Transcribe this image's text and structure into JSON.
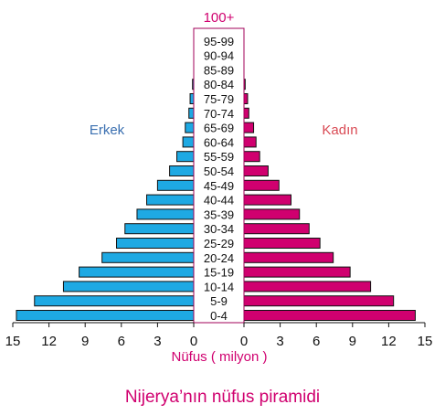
{
  "chart_data": {
    "type": "bar",
    "title": "Nijerya’nın nüfus piramidi",
    "top_label": "100+",
    "xlabel": "Nüfus ( milyon )",
    "left_label": "Erkek",
    "right_label": "Kadın",
    "categories": [
      "0-4",
      "5-9",
      "10-14",
      "15-19",
      "20-24",
      "25-29",
      "30-34",
      "35-39",
      "40-44",
      "45-49",
      "50-54",
      "55-59",
      "60-64",
      "65-69",
      "70-74",
      "75-79",
      "80-84",
      "85-89",
      "90-94",
      "95-99"
    ],
    "series": [
      {
        "name": "Erkek",
        "color": "#1ea9e3",
        "values": [
          14.7,
          13.2,
          10.8,
          9.5,
          7.6,
          6.4,
          5.7,
          4.7,
          3.9,
          3.0,
          2.0,
          1.4,
          0.9,
          0.7,
          0.4,
          0.3,
          0.1,
          0.0,
          0.0,
          0.0
        ]
      },
      {
        "name": "Kadın",
        "color": "#d0006f",
        "values": [
          14.2,
          12.4,
          10.5,
          8.8,
          7.4,
          6.3,
          5.4,
          4.6,
          3.9,
          2.9,
          2.0,
          1.3,
          1.0,
          0.8,
          0.4,
          0.3,
          0.1,
          0.0,
          0.0,
          0.0
        ]
      }
    ],
    "x_ticks": [
      "15",
      "12",
      "9",
      "6",
      "3",
      "0",
      "0",
      "3",
      "6",
      "9",
      "12",
      "15"
    ],
    "xlim": [
      0,
      15
    ],
    "grid": false
  }
}
